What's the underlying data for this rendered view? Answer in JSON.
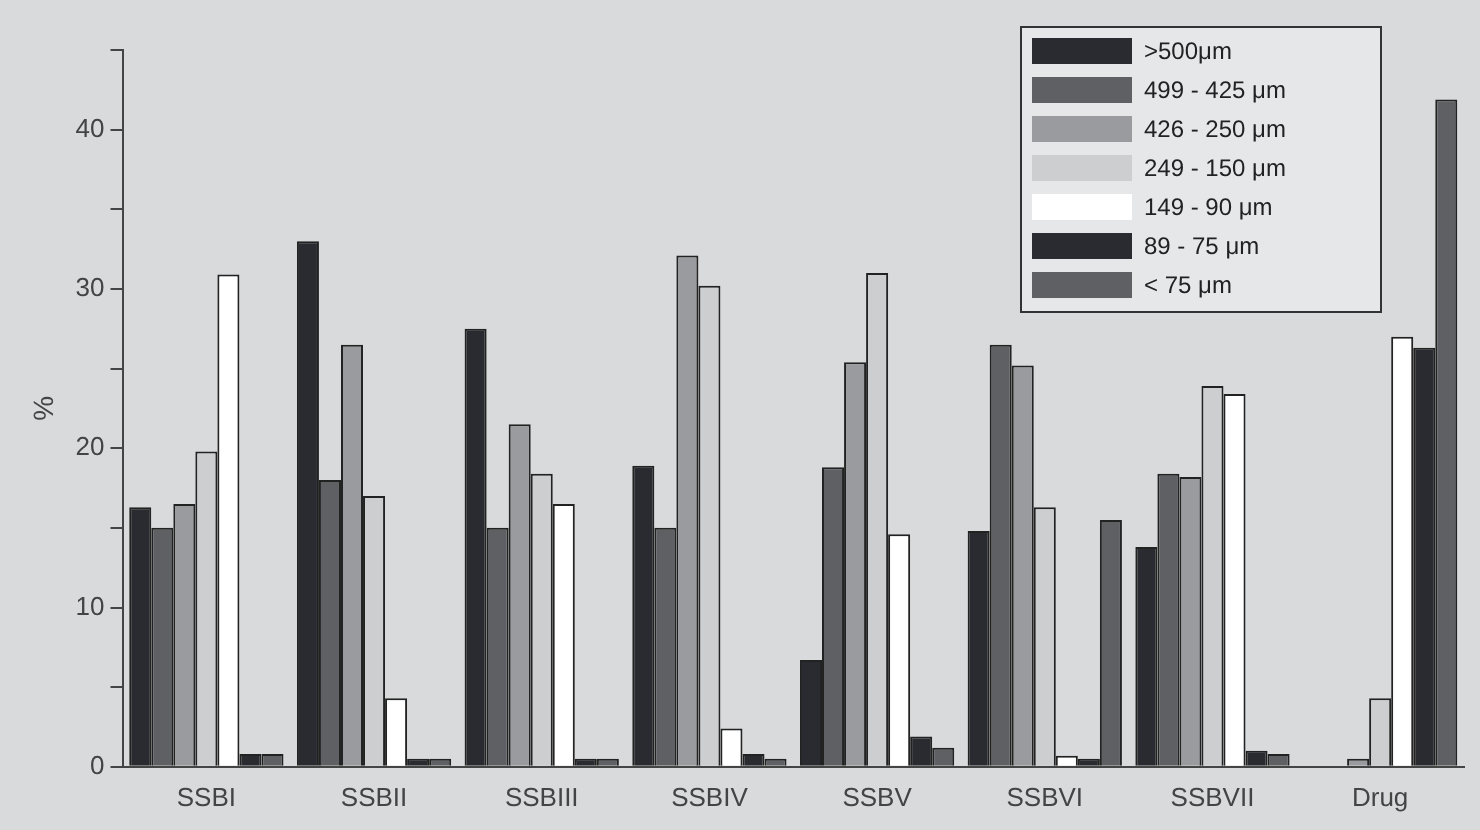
{
  "chart_data": {
    "type": "bar",
    "ylabel": "%",
    "categories": [
      "SSBI",
      "SSBII",
      "SSBIII",
      "SSBIV",
      "SSBV",
      "SSBVI",
      "SSBVII",
      "Drug"
    ],
    "series": [
      {
        "name": ">500μm",
        "color": "#2a2b30",
        "values": [
          16.3,
          33,
          27.5,
          18.9,
          6.7,
          14.8,
          13.8,
          null
        ]
      },
      {
        "name": "499 - 425 μm",
        "color": "#5f6064",
        "values": [
          15,
          18,
          15,
          15,
          18.8,
          26.5,
          18.4,
          null
        ]
      },
      {
        "name": "426 - 250 μm",
        "color": "#9a9b9e",
        "values": [
          16.5,
          26.5,
          21.5,
          32.1,
          25.4,
          25.2,
          18.2,
          0.5
        ]
      },
      {
        "name": "249 - 150 μm",
        "color": "#cdcecf",
        "values": [
          19.8,
          17,
          18.4,
          30.2,
          31,
          16.3,
          23.9,
          4.3
        ]
      },
      {
        "name": "149 - 90 μm",
        "color": "#ffffff",
        "values": [
          30.9,
          4.3,
          16.5,
          2.4,
          14.6,
          0.7,
          23.4,
          27
        ]
      },
      {
        "name": "89 - 75 μm",
        "color": "#2a2b30",
        "values": [
          0.8,
          0.5,
          0.5,
          0.8,
          1.9,
          0.5,
          1,
          26.3
        ]
      },
      {
        "name": "< 75 μm",
        "color": "#5f6064",
        "values": [
          0.8,
          0.5,
          0.5,
          0.5,
          1.2,
          15.5,
          0.8,
          41.9
        ]
      }
    ],
    "ylim": [
      0,
      45
    ],
    "yticks": [
      0,
      {
        "value": 5,
        "label": null
      },
      10,
      {
        "value": 15,
        "label": null
      },
      20,
      {
        "value": 25,
        "label": null
      },
      30,
      {
        "value": 35,
        "label": null
      },
      40,
      {
        "value": 45,
        "label": null
      }
    ],
    "grid": false,
    "legend": "top right"
  }
}
